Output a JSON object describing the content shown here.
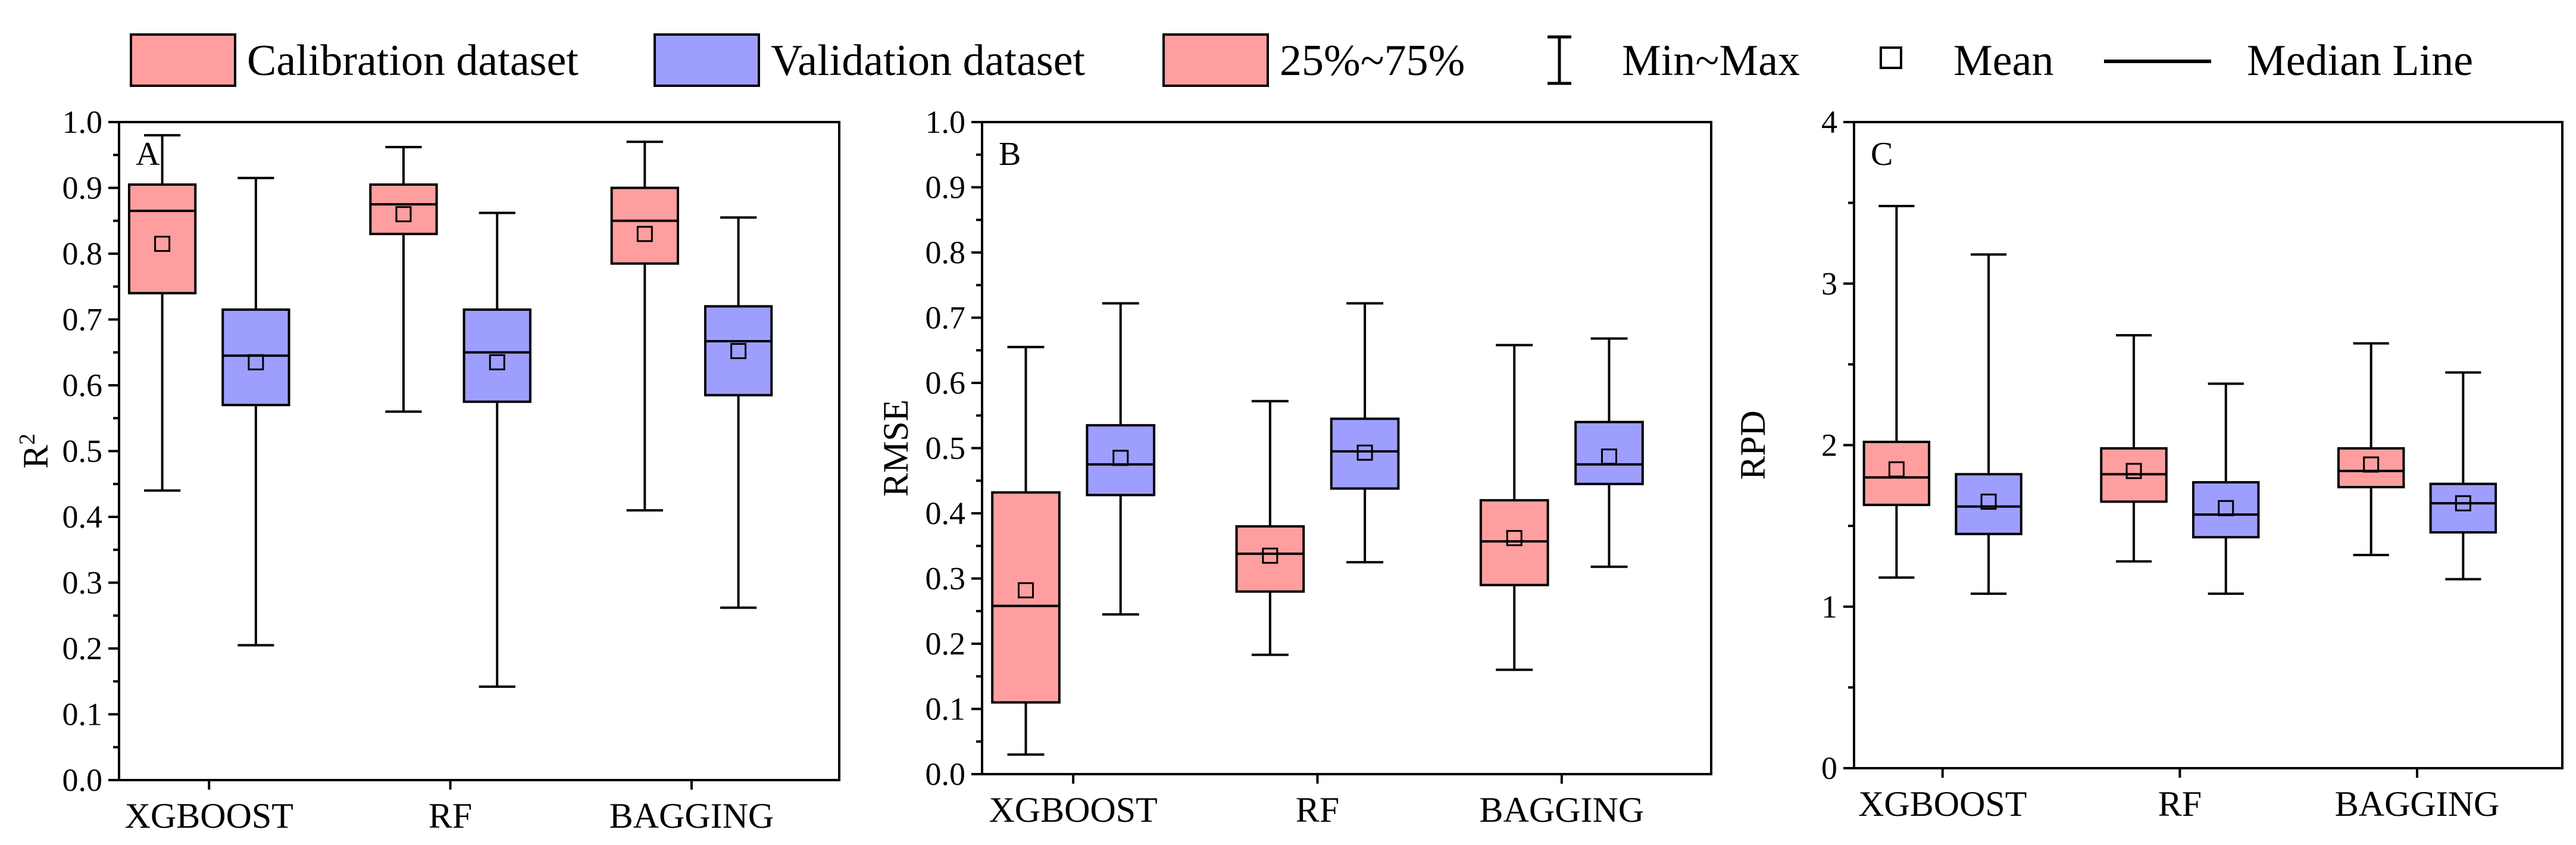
{
  "colors": {
    "calibration": "#ff9e9e",
    "validation": "#9e9eff"
  },
  "legend": [
    {
      "key": "calibration",
      "label": "Calibration dataset",
      "symbol": "box-red"
    },
    {
      "key": "validation",
      "label": "Validation dataset",
      "symbol": "box-blue"
    },
    {
      "key": "iqr",
      "label": "25%~75%",
      "symbol": "box-red"
    },
    {
      "key": "range",
      "label": "Min~Max",
      "symbol": "whisker-icon"
    },
    {
      "key": "mean",
      "label": "Mean",
      "symbol": "square-icon"
    },
    {
      "key": "median",
      "label": "Median Line",
      "symbol": "line-icon"
    }
  ],
  "chart_data": [
    {
      "type": "box",
      "panel": "A",
      "ylabel": "R",
      "ylabel_sup": "2",
      "ylim": [
        0,
        1.0
      ],
      "yticks": [
        "0.0",
        "0.1",
        "0.2",
        "0.3",
        "0.4",
        "0.5",
        "0.6",
        "0.7",
        "0.8",
        "0.9",
        "1.0"
      ],
      "ytick_values": [
        0,
        0.1,
        0.2,
        0.3,
        0.4,
        0.5,
        0.6,
        0.7,
        0.8,
        0.9,
        1.0
      ],
      "categories": [
        "XGBOOST",
        "RF",
        "BAGGING"
      ],
      "series": [
        {
          "name": "Calibration dataset",
          "color_key": "calibration",
          "boxes": [
            {
              "min": 0.44,
              "q1": 0.74,
              "median": 0.865,
              "q3": 0.905,
              "max": 0.98,
              "mean": 0.815
            },
            {
              "min": 0.56,
              "q1": 0.83,
              "median": 0.875,
              "q3": 0.905,
              "max": 0.962,
              "mean": 0.86
            },
            {
              "min": 0.41,
              "q1": 0.785,
              "median": 0.85,
              "q3": 0.9,
              "max": 0.97,
              "mean": 0.83
            }
          ]
        },
        {
          "name": "Validation dataset",
          "color_key": "validation",
          "boxes": [
            {
              "min": 0.205,
              "q1": 0.57,
              "median": 0.645,
              "q3": 0.715,
              "max": 0.915,
              "mean": 0.635
            },
            {
              "min": 0.142,
              "q1": 0.575,
              "median": 0.65,
              "q3": 0.715,
              "max": 0.862,
              "mean": 0.635
            },
            {
              "min": 0.262,
              "q1": 0.585,
              "median": 0.667,
              "q3": 0.72,
              "max": 0.855,
              "mean": 0.652
            }
          ]
        }
      ]
    },
    {
      "type": "box",
      "panel": "B",
      "ylabel": "RMSE",
      "ylabel_sup": "",
      "ylim": [
        0,
        1.0
      ],
      "yticks": [
        "0.0",
        "0.1",
        "0.2",
        "0.3",
        "0.4",
        "0.5",
        "0.6",
        "0.7",
        "0.8",
        "0.9",
        "1.0"
      ],
      "ytick_values": [
        0,
        0.1,
        0.2,
        0.3,
        0.4,
        0.5,
        0.6,
        0.7,
        0.8,
        0.9,
        1.0
      ],
      "categories": [
        "XGBOOST",
        "RF",
        "BAGGING"
      ],
      "series": [
        {
          "name": "Calibration dataset",
          "color_key": "calibration",
          "boxes": [
            {
              "min": 0.03,
              "q1": 0.11,
              "median": 0.258,
              "q3": 0.432,
              "max": 0.655,
              "mean": 0.282
            },
            {
              "min": 0.183,
              "q1": 0.28,
              "median": 0.338,
              "q3": 0.38,
              "max": 0.572,
              "mean": 0.335
            },
            {
              "min": 0.16,
              "q1": 0.29,
              "median": 0.357,
              "q3": 0.42,
              "max": 0.658,
              "mean": 0.362
            }
          ]
        },
        {
          "name": "Validation dataset",
          "color_key": "validation",
          "boxes": [
            {
              "min": 0.245,
              "q1": 0.428,
              "median": 0.475,
              "q3": 0.535,
              "max": 0.722,
              "mean": 0.485
            },
            {
              "min": 0.325,
              "q1": 0.438,
              "median": 0.495,
              "q3": 0.545,
              "max": 0.722,
              "mean": 0.493
            },
            {
              "min": 0.318,
              "q1": 0.445,
              "median": 0.475,
              "q3": 0.54,
              "max": 0.668,
              "mean": 0.487
            }
          ]
        }
      ]
    },
    {
      "type": "box",
      "panel": "C",
      "ylabel": "RPD",
      "ylabel_sup": "",
      "ylim": [
        0,
        4
      ],
      "yticks": [
        "0",
        "1",
        "2",
        "3",
        "4"
      ],
      "ytick_values": [
        0,
        1,
        2,
        3,
        4
      ],
      "categories": [
        "XGBOOST",
        "RF",
        "BAGGING"
      ],
      "series": [
        {
          "name": "Calibration dataset",
          "color_key": "calibration",
          "boxes": [
            {
              "min": 1.18,
              "q1": 1.63,
              "median": 1.8,
              "q3": 2.02,
              "max": 3.48,
              "mean": 1.85
            },
            {
              "min": 1.28,
              "q1": 1.65,
              "median": 1.82,
              "q3": 1.98,
              "max": 2.68,
              "mean": 1.84
            },
            {
              "min": 1.32,
              "q1": 1.74,
              "median": 1.84,
              "q3": 1.98,
              "max": 2.63,
              "mean": 1.88
            }
          ]
        },
        {
          "name": "Validation dataset",
          "color_key": "validation",
          "boxes": [
            {
              "min": 1.08,
              "q1": 1.45,
              "median": 1.62,
              "q3": 1.82,
              "max": 3.18,
              "mean": 1.65
            },
            {
              "min": 1.08,
              "q1": 1.43,
              "median": 1.57,
              "q3": 1.77,
              "max": 2.38,
              "mean": 1.61
            },
            {
              "min": 1.17,
              "q1": 1.46,
              "median": 1.64,
              "q3": 1.76,
              "max": 2.45,
              "mean": 1.64
            }
          ]
        }
      ]
    }
  ]
}
